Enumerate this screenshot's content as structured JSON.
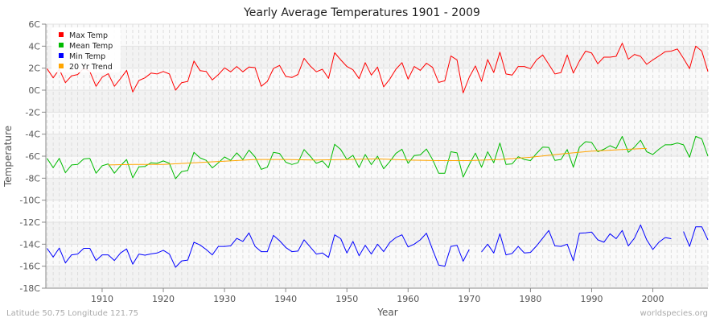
{
  "chart_data": {
    "type": "line",
    "title": "Yearly Average Temperatures 1901 - 2009",
    "xlabel": "Year",
    "ylabel": "Temperature",
    "xlim": [
      1901,
      2009
    ],
    "ylim": [
      -18,
      6
    ],
    "y_ticks": [
      "6C",
      "4C",
      "2C",
      "0C",
      "-2C",
      "-4C",
      "-6C",
      "-8C",
      "-10C",
      "-12C",
      "-14C",
      "-16C",
      "-18C"
    ],
    "y_tick_values": [
      6,
      4,
      2,
      0,
      -2,
      -4,
      -6,
      -8,
      -10,
      -12,
      -14,
      -16,
      -18
    ],
    "x_ticks": [
      "1910",
      "1920",
      "1930",
      "1940",
      "1950",
      "1960",
      "1970",
      "1980",
      "1990",
      "2000"
    ],
    "x_tick_values": [
      1910,
      1920,
      1930,
      1940,
      1950,
      1960,
      1970,
      1980,
      1990,
      2000
    ],
    "grid": true,
    "legend_position": "top-left",
    "start_year": 1901,
    "series": [
      {
        "name": "Max Temp",
        "color": "#ff0000",
        "values": [
          1.95,
          1.12,
          1.9,
          0.68,
          1.3,
          1.42,
          2.0,
          1.7,
          0.35,
          1.17,
          1.5,
          0.35,
          1.05,
          1.8,
          -0.17,
          0.88,
          1.12,
          1.55,
          1.47,
          1.7,
          1.47,
          0.0,
          0.68,
          0.8,
          2.65,
          1.78,
          1.7,
          0.93,
          1.42,
          2.03,
          1.67,
          2.15,
          1.67,
          2.1,
          2.05,
          0.35,
          0.8,
          1.97,
          2.25,
          1.25,
          1.15,
          1.43,
          2.9,
          2.2,
          1.67,
          1.9,
          1.07,
          3.4,
          2.75,
          2.15,
          1.85,
          1.05,
          2.5,
          1.37,
          2.1,
          0.3,
          1.0,
          1.9,
          2.5,
          1.0,
          2.15,
          1.8,
          2.45,
          2.07,
          0.7,
          0.85,
          3.1,
          2.75,
          -0.25,
          1.17,
          2.2,
          0.8,
          2.78,
          1.6,
          3.45,
          1.47,
          1.37,
          2.15,
          2.15,
          1.95,
          2.75,
          3.2,
          2.35,
          1.47,
          1.6,
          3.2,
          1.55,
          2.65,
          3.55,
          3.37,
          2.4,
          3.0,
          3.0,
          3.07,
          4.27,
          2.82,
          3.25,
          3.07,
          2.35,
          2.75,
          3.1,
          3.5,
          3.55,
          3.75,
          2.9,
          1.95,
          4.0,
          3.55,
          1.7
        ]
      },
      {
        "name": "Mean Temp",
        "color": "#00bb00",
        "values": [
          -6.2,
          -7.05,
          -6.2,
          -7.5,
          -6.8,
          -6.75,
          -6.25,
          -6.2,
          -7.55,
          -6.87,
          -6.7,
          -7.55,
          -6.87,
          -6.3,
          -7.97,
          -6.97,
          -6.93,
          -6.6,
          -6.65,
          -6.43,
          -6.65,
          -8.05,
          -7.4,
          -7.3,
          -5.65,
          -6.15,
          -6.38,
          -7.07,
          -6.6,
          -6.07,
          -6.38,
          -5.7,
          -6.3,
          -5.45,
          -6.07,
          -7.2,
          -7.0,
          -5.65,
          -5.75,
          -6.55,
          -6.75,
          -6.6,
          -5.4,
          -6.0,
          -6.65,
          -6.43,
          -7.05,
          -4.92,
          -5.4,
          -6.3,
          -5.93,
          -7.03,
          -5.85,
          -6.77,
          -6.0,
          -7.15,
          -6.5,
          -5.75,
          -5.37,
          -6.65,
          -5.95,
          -5.88,
          -5.35,
          -6.3,
          -7.55,
          -7.55,
          -5.6,
          -5.7,
          -7.9,
          -6.77,
          -5.72,
          -7.0,
          -5.6,
          -6.6,
          -4.8,
          -6.75,
          -6.7,
          -6.05,
          -6.3,
          -6.4,
          -5.75,
          -5.17,
          -5.2,
          -6.38,
          -6.3,
          -5.4,
          -7.0,
          -5.17,
          -4.68,
          -4.75,
          -5.6,
          -5.37,
          -5.05,
          -5.3,
          -4.2,
          -5.65,
          -5.17,
          -4.55,
          -5.6,
          -5.85,
          -5.37,
          -4.97,
          -4.97,
          -4.8,
          -4.97,
          -6.1,
          -4.2,
          -4.43,
          -6.0
        ]
      },
      {
        "name": "Min Temp",
        "color": "#0000ff",
        "values": [
          -14.38,
          -15.17,
          -14.35,
          -15.7,
          -14.97,
          -14.9,
          -14.38,
          -14.38,
          -15.48,
          -14.97,
          -14.97,
          -15.48,
          -14.8,
          -14.43,
          -15.82,
          -14.9,
          -15.0,
          -14.88,
          -14.8,
          -14.55,
          -14.9,
          -16.1,
          -15.52,
          -15.45,
          -13.82,
          -14.07,
          -14.48,
          -14.97,
          -14.2,
          -14.2,
          -14.15,
          -13.47,
          -13.75,
          -12.97,
          -14.2,
          -14.68,
          -14.68,
          -13.2,
          -13.68,
          -14.3,
          -14.68,
          -14.63,
          -13.6,
          -14.25,
          -14.9,
          -14.8,
          -15.2,
          -13.15,
          -13.5,
          -14.8,
          -13.75,
          -15.05,
          -14.1,
          -14.9,
          -14.0,
          -14.68,
          -13.85,
          -13.4,
          -13.15,
          -14.25,
          -14.0,
          -13.6,
          -13.0,
          -14.48,
          -15.9,
          -16.0,
          -14.2,
          -14.1,
          -15.55,
          -14.48,
          null,
          -14.7,
          -14.0,
          -14.8,
          -13.05,
          -14.97,
          -14.85,
          -14.2,
          -14.8,
          -14.75,
          -14.15,
          -13.45,
          -12.75,
          -14.15,
          -14.2,
          -14.0,
          -15.5,
          -13.0,
          -12.97,
          -12.9,
          -13.6,
          -13.82,
          -13.05,
          -13.5,
          -12.75,
          -14.15,
          -13.45,
          -12.25,
          -13.6,
          -14.48,
          -13.82,
          -13.4,
          -13.5,
          null,
          -12.85,
          -14.2,
          -12.42,
          -12.42,
          -13.6
        ]
      },
      {
        "name": "20 Yr Trend",
        "color": "#ffa500",
        "x": [
          1911,
          1915,
          1920,
          1925,
          1930,
          1935,
          1940,
          1945,
          1950,
          1955,
          1960,
          1965,
          1970,
          1975,
          1980,
          1985,
          1990,
          1995,
          1999
        ],
        "values": [
          -6.8,
          -6.75,
          -6.75,
          -6.6,
          -6.45,
          -6.3,
          -6.3,
          -6.35,
          -6.3,
          -6.25,
          -6.35,
          -6.4,
          -6.4,
          -6.3,
          -6.1,
          -5.8,
          -5.55,
          -5.4,
          -5.3
        ]
      }
    ]
  },
  "footer": {
    "location": "Latitude 50.75 Longitude 121.75",
    "source": "worldspecies.org"
  }
}
